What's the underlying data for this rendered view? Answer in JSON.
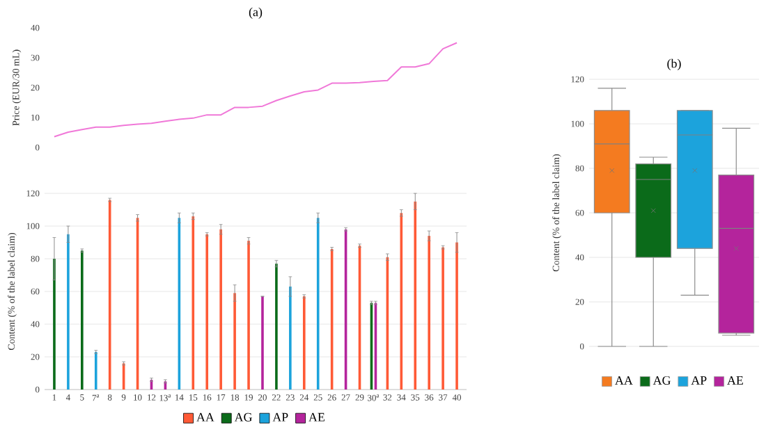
{
  "chart_data": [
    {
      "type": "line",
      "title": "(a)",
      "ylabel": "Price (EUR/30 mL)",
      "categories": [
        null,
        null,
        null,
        null,
        null,
        null,
        null,
        null,
        null,
        null,
        null,
        null,
        null,
        null,
        null,
        null,
        null,
        null,
        null,
        null,
        null,
        null,
        null,
        null,
        null,
        null,
        null,
        null,
        null,
        null
      ],
      "ylim": [
        0,
        40
      ],
      "yticks": [
        0,
        10,
        20,
        30,
        40
      ],
      "series": [
        {
          "color": "#f078d8",
          "values": [
            3.6,
            5.1,
            6,
            6.8,
            6.8,
            7.4,
            7.8,
            8.1,
            8.8,
            9.4,
            9.8,
            10.9,
            10.9,
            13.4,
            13.4,
            13.8,
            15.7,
            17.2,
            18.6,
            19.2,
            21.5,
            21.5,
            21.7,
            22.1,
            22.4,
            26.9,
            26.9,
            28,
            33,
            35
          ]
        }
      ]
    },
    {
      "type": "bar",
      "ylabel": "Content (% of the label claim)",
      "categories": [
        "1",
        "4",
        "5",
        "7$^{a}$",
        "8",
        "9",
        "10",
        "12",
        "13$^{a}$",
        "14",
        "15",
        "16",
        "17",
        "18",
        "19",
        "20",
        "22",
        "23",
        "24",
        "25",
        "26",
        "27",
        "29",
        "30$^{a}$",
        "32",
        "34",
        "35",
        "36",
        "37",
        "40"
      ],
      "ylim": [
        0,
        120
      ],
      "yticks": [
        0,
        20,
        40,
        60,
        80,
        100,
        120
      ],
      "grid": "y",
      "legend": "bottom",
      "series": [
        {
          "name": "AA",
          "color": "#ff5a36",
          "values": [
            null,
            null,
            null,
            null,
            116,
            16,
            105,
            null,
            null,
            null,
            106,
            95,
            98,
            59,
            91,
            null,
            null,
            null,
            57,
            null,
            86,
            null,
            88,
            null,
            81,
            108,
            115,
            94,
            87,
            90
          ],
          "errors": [
            null,
            null,
            null,
            null,
            1,
            1,
            2,
            null,
            null,
            null,
            2,
            1,
            3,
            5,
            2,
            null,
            null,
            null,
            1,
            null,
            1,
            null,
            1,
            null,
            2,
            2,
            5,
            3,
            1,
            6
          ]
        },
        {
          "name": "AG",
          "color": "#0b6b1a",
          "values": [
            80,
            null,
            85,
            null,
            null,
            null,
            null,
            null,
            null,
            null,
            null,
            null,
            null,
            null,
            null,
            null,
            77,
            null,
            null,
            null,
            null,
            null,
            null,
            53,
            null,
            null,
            null,
            null,
            null,
            null
          ],
          "errors": [
            13,
            null,
            1,
            null,
            null,
            null,
            null,
            null,
            null,
            null,
            null,
            null,
            null,
            null,
            null,
            null,
            2,
            null,
            null,
            null,
            null,
            null,
            null,
            1,
            null,
            null,
            null,
            null,
            null,
            null
          ]
        },
        {
          "name": "AP",
          "color": "#1ca3dc",
          "values": [
            null,
            95,
            null,
            23,
            null,
            null,
            null,
            null,
            null,
            105,
            null,
            null,
            null,
            null,
            null,
            null,
            null,
            63,
            null,
            105,
            null,
            null,
            null,
            null,
            null,
            null,
            null,
            null,
            null,
            null
          ],
          "errors": [
            null,
            5,
            null,
            1,
            null,
            null,
            null,
            null,
            null,
            3,
            null,
            null,
            null,
            null,
            null,
            null,
            null,
            6,
            null,
            3,
            null,
            null,
            null,
            null,
            null,
            null,
            null,
            null,
            null,
            null
          ]
        },
        {
          "name": "AE",
          "color": "#b4249c",
          "values": [
            null,
            null,
            null,
            null,
            null,
            null,
            null,
            6,
            5,
            null,
            null,
            null,
            null,
            null,
            null,
            57,
            null,
            null,
            null,
            null,
            null,
            98,
            null,
            53,
            null,
            null,
            null,
            null,
            null,
            null
          ],
          "errors": [
            null,
            null,
            null,
            null,
            null,
            null,
            null,
            1,
            1,
            null,
            null,
            null,
            null,
            null,
            null,
            null,
            null,
            null,
            null,
            null,
            null,
            1,
            null,
            1,
            null,
            null,
            null,
            null,
            null,
            null
          ]
        }
      ]
    },
    {
      "type": "box",
      "title": "(b)",
      "ylabel": "Content (% of the label claim)",
      "categories": [
        null
      ],
      "ylim": [
        0,
        120
      ],
      "yticks": [
        0,
        20,
        40,
        60,
        80,
        100,
        120
      ],
      "grid": "y",
      "legend": "bottom",
      "series": [
        {
          "name": "AA",
          "color": "#f47b20",
          "boxes": [
            {
              "low": 0,
              "q1": 60,
              "median": 91,
              "q3": 106,
              "high": 116,
              "mean": 79
            }
          ]
        },
        {
          "name": "AG",
          "color": "#0b6b1a",
          "boxes": [
            {
              "low": 0,
              "q1": 40,
              "median": 75,
              "q3": 82,
              "high": 85,
              "mean": 61
            }
          ]
        },
        {
          "name": "AP",
          "color": "#1ca3dc",
          "boxes": [
            {
              "low": 23,
              "q1": 44,
              "median": 95,
              "q3": 106,
              "high": 106,
              "mean": 79
            }
          ]
        },
        {
          "name": "AE",
          "color": "#b4249c",
          "boxes": [
            {
              "low": 5,
              "q1": 6,
              "median": 53,
              "q3": 77,
              "high": 98,
              "mean": 44
            }
          ]
        }
      ]
    }
  ]
}
